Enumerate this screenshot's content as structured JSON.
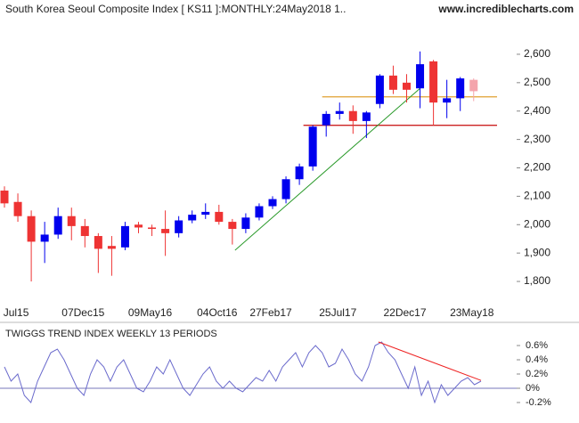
{
  "chart_data": [
    {
      "type": "candlestick",
      "title": "South Korea Seoul Composite Index [ KS11 ]:MONTHLY:24May2018 1..",
      "subtitle": "www.incrediblecharts.com",
      "categories": [
        null,
        "Jul15",
        null,
        null,
        null,
        null,
        "07Dec15",
        null,
        null,
        null,
        null,
        "09May16",
        null,
        null,
        null,
        null,
        "04Oct16",
        null,
        null,
        null,
        "27Feb17",
        null,
        null,
        null,
        null,
        "25Jul17",
        null,
        null,
        null,
        null,
        "22Dec17",
        null,
        null,
        null,
        null,
        "23May18"
      ],
      "open": [
        2120,
        2080,
        2030,
        1940,
        1965,
        2030,
        1995,
        1960,
        1925,
        1920,
        2000,
        1990,
        1985,
        1970,
        2015,
        2035,
        2045,
        2010,
        1985,
        2025,
        2065,
        2090,
        2160,
        2205,
        2350,
        2390,
        2400,
        2365,
        2425,
        2525,
        2500,
        2480,
        2575,
        2430,
        2445,
        2510
      ],
      "high": [
        2135,
        2110,
        2050,
        2010,
        2060,
        2060,
        2020,
        1970,
        1960,
        2010,
        2010,
        2000,
        2050,
        2030,
        2050,
        2075,
        2070,
        2020,
        2040,
        2075,
        2100,
        2170,
        2215,
        2350,
        2400,
        2430,
        2420,
        2400,
        2530,
        2560,
        2530,
        2610,
        2580,
        2510,
        2520,
        2515
      ],
      "low": [
        2060,
        2010,
        1800,
        1865,
        1950,
        1945,
        1920,
        1830,
        1820,
        1910,
        1970,
        1960,
        1890,
        1955,
        2005,
        2020,
        2000,
        1930,
        1970,
        2015,
        2055,
        2075,
        2140,
        2190,
        2310,
        2370,
        2320,
        2305,
        2410,
        2460,
        2430,
        2410,
        2350,
        2375,
        2400,
        2435
      ],
      "close": [
        2075,
        2030,
        1940,
        1965,
        2030,
        1995,
        1960,
        1915,
        1915,
        1995,
        1990,
        1985,
        1970,
        2015,
        2035,
        2045,
        2010,
        1985,
        2025,
        2065,
        2090,
        2160,
        2205,
        2345,
        2390,
        2400,
        2365,
        2395,
        2525,
        2475,
        2475,
        2565,
        2430,
        2445,
        2515,
        2470
      ],
      "up_color": "#0000ee",
      "down_color": "#ee3333",
      "last_color": "#f4a4ac",
      "ylim": [
        1750,
        2650
      ],
      "yticks": [
        {
          "value": 1800,
          "label": "1,800"
        },
        {
          "value": 1900,
          "label": "1,900"
        },
        {
          "value": 2000,
          "label": "2,000"
        },
        {
          "value": 2100,
          "label": "2,100"
        },
        {
          "value": 2200,
          "label": "2,200"
        },
        {
          "value": 2300,
          "label": "2,300"
        },
        {
          "value": 2400,
          "label": "2,400"
        },
        {
          "value": 2500,
          "label": "2,500"
        },
        {
          "value": 2600,
          "label": "2,600"
        }
      ],
      "hlines": [
        {
          "value": 2450,
          "from": 23.7,
          "color": "#e0a030"
        },
        {
          "value": 2350,
          "from": 22.3,
          "color": "#cc2222"
        }
      ],
      "trendlines": [
        {
          "from": [
            17.2,
            1910
          ],
          "to": [
            31,
            2480
          ],
          "color": "#2a9a2a"
        }
      ]
    },
    {
      "type": "line",
      "title": "TWIGGS TREND INDEX WEEKLY 13 PERIODS",
      "values": [
        0.3,
        0.1,
        0.2,
        -0.1,
        -0.2,
        0.1,
        0.3,
        0.5,
        0.55,
        0.4,
        0.2,
        0.0,
        -0.1,
        0.2,
        0.4,
        0.3,
        0.1,
        0.3,
        0.4,
        0.2,
        0.0,
        -0.05,
        0.1,
        0.3,
        0.2,
        0.4,
        0.2,
        0.0,
        -0.1,
        0.05,
        0.2,
        0.3,
        0.1,
        0.0,
        0.1,
        0.0,
        -0.05,
        0.05,
        0.15,
        0.1,
        0.25,
        0.1,
        0.3,
        0.4,
        0.5,
        0.3,
        0.5,
        0.6,
        0.5,
        0.3,
        0.35,
        0.55,
        0.4,
        0.2,
        0.1,
        0.3,
        0.6,
        0.65,
        0.5,
        0.4,
        0.2,
        0.0,
        0.3,
        -0.1,
        0.1,
        -0.2,
        0.05,
        -0.1,
        0.0,
        0.1,
        0.15,
        0.05,
        0.1
      ],
      "color": "#6a6acc",
      "ylim": [
        -0.3,
        0.7
      ],
      "yticks": [
        {
          "value": -0.2,
          "label": "-0.2%"
        },
        {
          "value": 0,
          "label": "0%"
        },
        {
          "value": 0.2,
          "label": "0.2%"
        },
        {
          "value": 0.4,
          "label": "0.4%"
        },
        {
          "value": 0.6,
          "label": "0.6%"
        }
      ],
      "baseline": 0,
      "trendlines": [
        {
          "from": [
            56.5,
            0.65
          ],
          "to": [
            72,
            0.11
          ],
          "color": "#ee2222"
        }
      ]
    }
  ]
}
